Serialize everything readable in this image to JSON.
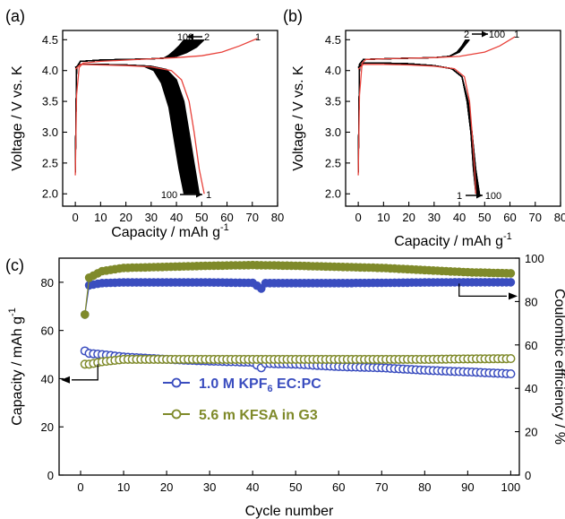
{
  "chart_data": [
    {
      "panel": "(a)",
      "type": "line",
      "xlabel": "Capacity / mAh g",
      "xlabel_sup": "-1",
      "ylabel": "Voltage / V vs. K",
      "xlim": [
        -5,
        80
      ],
      "ylim": [
        1.8,
        4.65
      ],
      "xticks": [
        0,
        10,
        20,
        30,
        40,
        50,
        60,
        70,
        80
      ],
      "yticks": [
        2.0,
        2.5,
        3.0,
        3.5,
        4.0,
        4.5
      ],
      "colors": {
        "cycle1": "#e8413a",
        "cycles": "#000000"
      },
      "series": [
        {
          "label": "1",
          "charge": [
            [
              0.0,
              2.3
            ],
            [
              0.5,
              3.6
            ],
            [
              1.5,
              4.05
            ],
            [
              3,
              4.12
            ],
            [
              10,
              4.15
            ],
            [
              20,
              4.17
            ],
            [
              30,
              4.19
            ],
            [
              40,
              4.21
            ],
            [
              50,
              4.24
            ],
            [
              58,
              4.3
            ],
            [
              65,
              4.4
            ],
            [
              72,
              4.52
            ]
          ],
          "discharge": [
            [
              0.0,
              4.02
            ],
            [
              2,
              4.1
            ],
            [
              10,
              4.09
            ],
            [
              20,
              4.08
            ],
            [
              30,
              4.06
            ],
            [
              38,
              4.0
            ],
            [
              42,
              3.85
            ],
            [
              45,
              3.5
            ],
            [
              47,
              3.0
            ],
            [
              49,
              2.4
            ],
            [
              51,
              2.0
            ]
          ]
        },
        {
          "label": "2",
          "charge": [
            [
              0.0,
              2.35
            ],
            [
              0.5,
              4.05
            ],
            [
              2,
              4.15
            ],
            [
              10,
              4.17
            ],
            [
              20,
              4.18
            ],
            [
              30,
              4.19
            ],
            [
              35,
              4.2
            ],
            [
              40,
              4.23
            ],
            [
              44,
              4.29
            ],
            [
              48,
              4.38
            ],
            [
              51,
              4.5
            ]
          ],
          "discharge": [
            [
              0.0,
              4.05
            ],
            [
              2,
              4.1
            ],
            [
              10,
              4.1
            ],
            [
              20,
              4.09
            ],
            [
              30,
              4.07
            ],
            [
              36,
              4.02
            ],
            [
              40,
              3.85
            ],
            [
              43,
              3.5
            ],
            [
              45,
              3.0
            ],
            [
              47,
              2.5
            ],
            [
              49,
              2.0
            ]
          ]
        },
        {
          "label": "100",
          "charge": [
            [
              0.0,
              2.35
            ],
            [
              0.5,
              4.05
            ],
            [
              2,
              4.15
            ],
            [
              10,
              4.17
            ],
            [
              20,
              4.18
            ],
            [
              30,
              4.19
            ],
            [
              35,
              4.2
            ],
            [
              37,
              4.25
            ],
            [
              39,
              4.32
            ],
            [
              41,
              4.4
            ],
            [
              43,
              4.5
            ]
          ],
          "discharge": [
            [
              0.0,
              4.05
            ],
            [
              2,
              4.1
            ],
            [
              10,
              4.1
            ],
            [
              20,
              4.09
            ],
            [
              27,
              4.07
            ],
            [
              31,
              4.0
            ],
            [
              34,
              3.8
            ],
            [
              37,
              3.4
            ],
            [
              39,
              2.9
            ],
            [
              41,
              2.4
            ],
            [
              43,
              2.0
            ]
          ]
        }
      ],
      "annotations": [
        "100",
        "2",
        "1",
        "100",
        "1"
      ]
    },
    {
      "panel": "(b)",
      "type": "line",
      "xlabel": "Capacity / mAh g",
      "xlabel_sup": "-1",
      "ylabel": "Voltage / V vs. K",
      "xlim": [
        -5,
        80
      ],
      "ylim": [
        1.8,
        4.65
      ],
      "xticks": [
        0,
        10,
        20,
        30,
        40,
        50,
        60,
        70,
        80
      ],
      "yticks": [
        2.0,
        2.5,
        3.0,
        3.5,
        4.0,
        4.5
      ],
      "series": [
        {
          "label": "1",
          "charge": [
            [
              0.0,
              2.3
            ],
            [
              0.5,
              3.6
            ],
            [
              1.5,
              4.12
            ],
            [
              3,
              4.18
            ],
            [
              10,
              4.19
            ],
            [
              20,
              4.2
            ],
            [
              30,
              4.21
            ],
            [
              40,
              4.23
            ],
            [
              50,
              4.3
            ],
            [
              56,
              4.4
            ],
            [
              62,
              4.55
            ]
          ],
          "discharge": [
            [
              0.0,
              4.02
            ],
            [
              2,
              4.1
            ],
            [
              10,
              4.1
            ],
            [
              20,
              4.09
            ],
            [
              30,
              4.07
            ],
            [
              38,
              4.03
            ],
            [
              42,
              3.9
            ],
            [
              44,
              3.5
            ],
            [
              45,
              3.0
            ],
            [
              46,
              2.4
            ],
            [
              46.5,
              2.0
            ]
          ]
        },
        {
          "label": "2",
          "charge": [
            [
              0.0,
              2.35
            ],
            [
              0.5,
              4.1
            ],
            [
              2,
              4.18
            ],
            [
              10,
              4.19
            ],
            [
              20,
              4.2
            ],
            [
              30,
              4.21
            ],
            [
              36,
              4.23
            ],
            [
              40,
              4.3
            ],
            [
              42,
              4.4
            ],
            [
              44,
              4.5
            ]
          ],
          "discharge": [
            [
              0.0,
              4.05
            ],
            [
              2,
              4.12
            ],
            [
              10,
              4.12
            ],
            [
              20,
              4.11
            ],
            [
              30,
              4.08
            ],
            [
              37,
              4.03
            ],
            [
              41,
              3.9
            ],
            [
              43,
              3.5
            ],
            [
              44.5,
              3.0
            ],
            [
              45.5,
              2.4
            ],
            [
              46.5,
              2.0
            ]
          ]
        },
        {
          "label": "100",
          "charge": [
            [
              0.0,
              2.35
            ],
            [
              0.5,
              4.1
            ],
            [
              2,
              4.18
            ],
            [
              10,
              4.19
            ],
            [
              20,
              4.2
            ],
            [
              30,
              4.21
            ],
            [
              36,
              4.23
            ],
            [
              39,
              4.3
            ],
            [
              41,
              4.4
            ],
            [
              42.5,
              4.5
            ]
          ],
          "discharge": [
            [
              0.0,
              4.05
            ],
            [
              2,
              4.12
            ],
            [
              10,
              4.12
            ],
            [
              20,
              4.11
            ],
            [
              30,
              4.08
            ],
            [
              37,
              4.03
            ],
            [
              41,
              3.9
            ],
            [
              43.5,
              3.5
            ],
            [
              45,
              3.0
            ],
            [
              46.5,
              2.4
            ],
            [
              48,
              2.0
            ]
          ]
        }
      ],
      "annotations": [
        "2",
        "100",
        "1",
        "1",
        "100"
      ]
    },
    {
      "panel": "(c)",
      "type": "scatter",
      "xlabel": "Cycle number",
      "ylabel": "Capacity / mAh g",
      "ylabel_sup": "-1",
      "ylabel_right": "Coulombic efficiency / %",
      "xlim": [
        -5,
        102
      ],
      "ylim": [
        0,
        90
      ],
      "ylim_right": [
        0,
        100
      ],
      "xticks": [
        0,
        10,
        20,
        30,
        40,
        50,
        60,
        70,
        80,
        90,
        100
      ],
      "yticks": [
        0,
        20,
        40,
        60,
        80
      ],
      "yticks_right": [
        0,
        20,
        40,
        60,
        80,
        100
      ],
      "series": [
        {
          "name": "1.0 M KPF6 EC:PC",
          "name_base": "1.0 M KPF",
          "name_sub": "6",
          "name_tail": " EC:PC",
          "color": "#3a4dbf",
          "capacity": {
            "x_start": 1,
            "x_end": 100,
            "start": 51.5,
            "knee": [
              [
                2,
                50.5
              ],
              [
                5,
                50
              ],
              [
                10,
                49
              ],
              [
                20,
                48
              ],
              [
                30,
                47.3
              ],
              [
                40,
                46.8
              ],
              [
                42,
                44.5
              ],
              [
                43,
                46.3
              ],
              [
                50,
                46
              ],
              [
                60,
                45
              ],
              [
                70,
                44.5
              ],
              [
                80,
                43.5
              ],
              [
                90,
                42.8
              ],
              [
                100,
                42
              ]
            ]
          },
          "ce": {
            "x_start": 1,
            "start": 74,
            "knee": [
              [
                2,
                87.5
              ],
              [
                5,
                88.5
              ],
              [
                10,
                88.8
              ],
              [
                20,
                88.8
              ],
              [
                30,
                88.8
              ],
              [
                40,
                88.6
              ],
              [
                42,
                86
              ],
              [
                43,
                88.5
              ],
              [
                50,
                88.5
              ],
              [
                60,
                88.5
              ],
              [
                70,
                88.6
              ],
              [
                80,
                88.8
              ],
              [
                90,
                88.9
              ],
              [
                100,
                88.9
              ]
            ]
          }
        },
        {
          "name": "5.6 m KFSA in G3",
          "color": "#7f8a2a",
          "capacity": {
            "x_start": 1,
            "x_end": 100,
            "start": 46,
            "knee": [
              [
                2,
                46
              ],
              [
                5,
                47
              ],
              [
                10,
                48
              ],
              [
                20,
                48
              ],
              [
                30,
                48
              ],
              [
                40,
                48
              ],
              [
                50,
                48
              ],
              [
                60,
                48
              ],
              [
                70,
                48
              ],
              [
                80,
                48
              ],
              [
                90,
                48.2
              ],
              [
                100,
                48.3
              ]
            ]
          },
          "ce": {
            "x_start": 1,
            "start": 74,
            "knee": [
              [
                2,
                91
              ],
              [
                5,
                94
              ],
              [
                10,
                95.5
              ],
              [
                20,
                96
              ],
              [
                30,
                96.5
              ],
              [
                40,
                96.8
              ],
              [
                50,
                96.5
              ],
              [
                60,
                96
              ],
              [
                70,
                95.5
              ],
              [
                80,
                94.5
              ],
              [
                90,
                93.5
              ],
              [
                100,
                93
              ]
            ]
          }
        }
      ]
    }
  ]
}
